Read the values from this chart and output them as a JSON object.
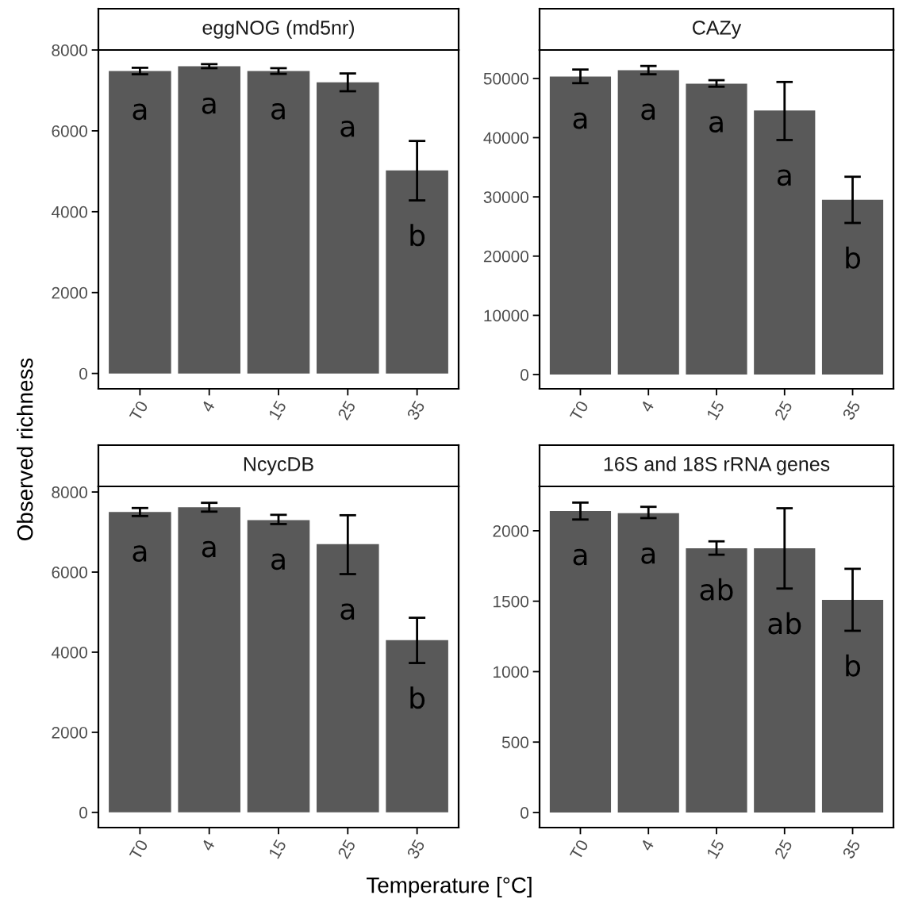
{
  "chart_data": [
    {
      "type": "bar",
      "title": "eggNOG (md5nr)",
      "xlabel": "Temperature [°C]",
      "ylabel": "Observed richness",
      "categories": [
        "T0",
        "4",
        "15",
        "25",
        "35"
      ],
      "values": [
        7480,
        7600,
        7480,
        7200,
        5020
      ],
      "color": "#595959",
      "errors": [
        [
          7400,
          7560
        ],
        [
          7550,
          7650
        ],
        [
          7410,
          7550
        ],
        [
          6980,
          7420
        ],
        [
          4280,
          5750
        ]
      ],
      "ylim": [
        -380,
        8000
      ],
      "yticks": [
        0,
        2000,
        4000,
        6000,
        8000
      ],
      "grid": false,
      "annotations": [
        "a",
        "a",
        "a",
        "a",
        "b"
      ]
    },
    {
      "type": "bar",
      "title": "CAZy",
      "categories": [
        "T0",
        "4",
        "15",
        "25",
        "35"
      ],
      "values": [
        50300,
        51400,
        49100,
        44600,
        29500
      ],
      "color": "#595959",
      "errors": [
        [
          49200,
          51500
        ],
        [
          50700,
          52100
        ],
        [
          48600,
          49700
        ],
        [
          39600,
          49400
        ],
        [
          25600,
          33400
        ]
      ],
      "ylim": [
        -2400,
        54800
      ],
      "yticks": [
        0,
        10000,
        20000,
        30000,
        40000,
        50000
      ],
      "grid": false,
      "annotations": [
        "a",
        "a",
        "a",
        "a",
        "b"
      ]
    },
    {
      "type": "bar",
      "title": "NcycDB",
      "categories": [
        "T0",
        "4",
        "15",
        "25",
        "35"
      ],
      "values": [
        7500,
        7620,
        7300,
        6700,
        4300
      ],
      "color": "#595959",
      "errors": [
        [
          7400,
          7600
        ],
        [
          7510,
          7730
        ],
        [
          7200,
          7430
        ],
        [
          5950,
          7420
        ],
        [
          3730,
          4860
        ]
      ],
      "ylim": [
        -380,
        8140
      ],
      "yticks": [
        0,
        2000,
        4000,
        6000,
        8000
      ],
      "grid": false,
      "annotations": [
        "a",
        "a",
        "a",
        "a",
        "b"
      ]
    },
    {
      "type": "bar",
      "title": "16S and 18S rRNA genes",
      "categories": [
        "T0",
        "4",
        "15",
        "25",
        "35"
      ],
      "values": [
        2140,
        2125,
        1875,
        1875,
        1510
      ],
      "color": "#595959",
      "errors": [
        [
          2080,
          2200
        ],
        [
          2090,
          2170
        ],
        [
          1830,
          1925
        ],
        [
          1590,
          2160
        ],
        [
          1290,
          1730
        ]
      ],
      "ylim": [
        -107,
        2315
      ],
      "yticks": [
        0,
        500,
        1000,
        1500,
        2000
      ],
      "grid": false,
      "annotations": [
        "a",
        "a",
        "ab",
        "ab",
        "b"
      ]
    }
  ]
}
